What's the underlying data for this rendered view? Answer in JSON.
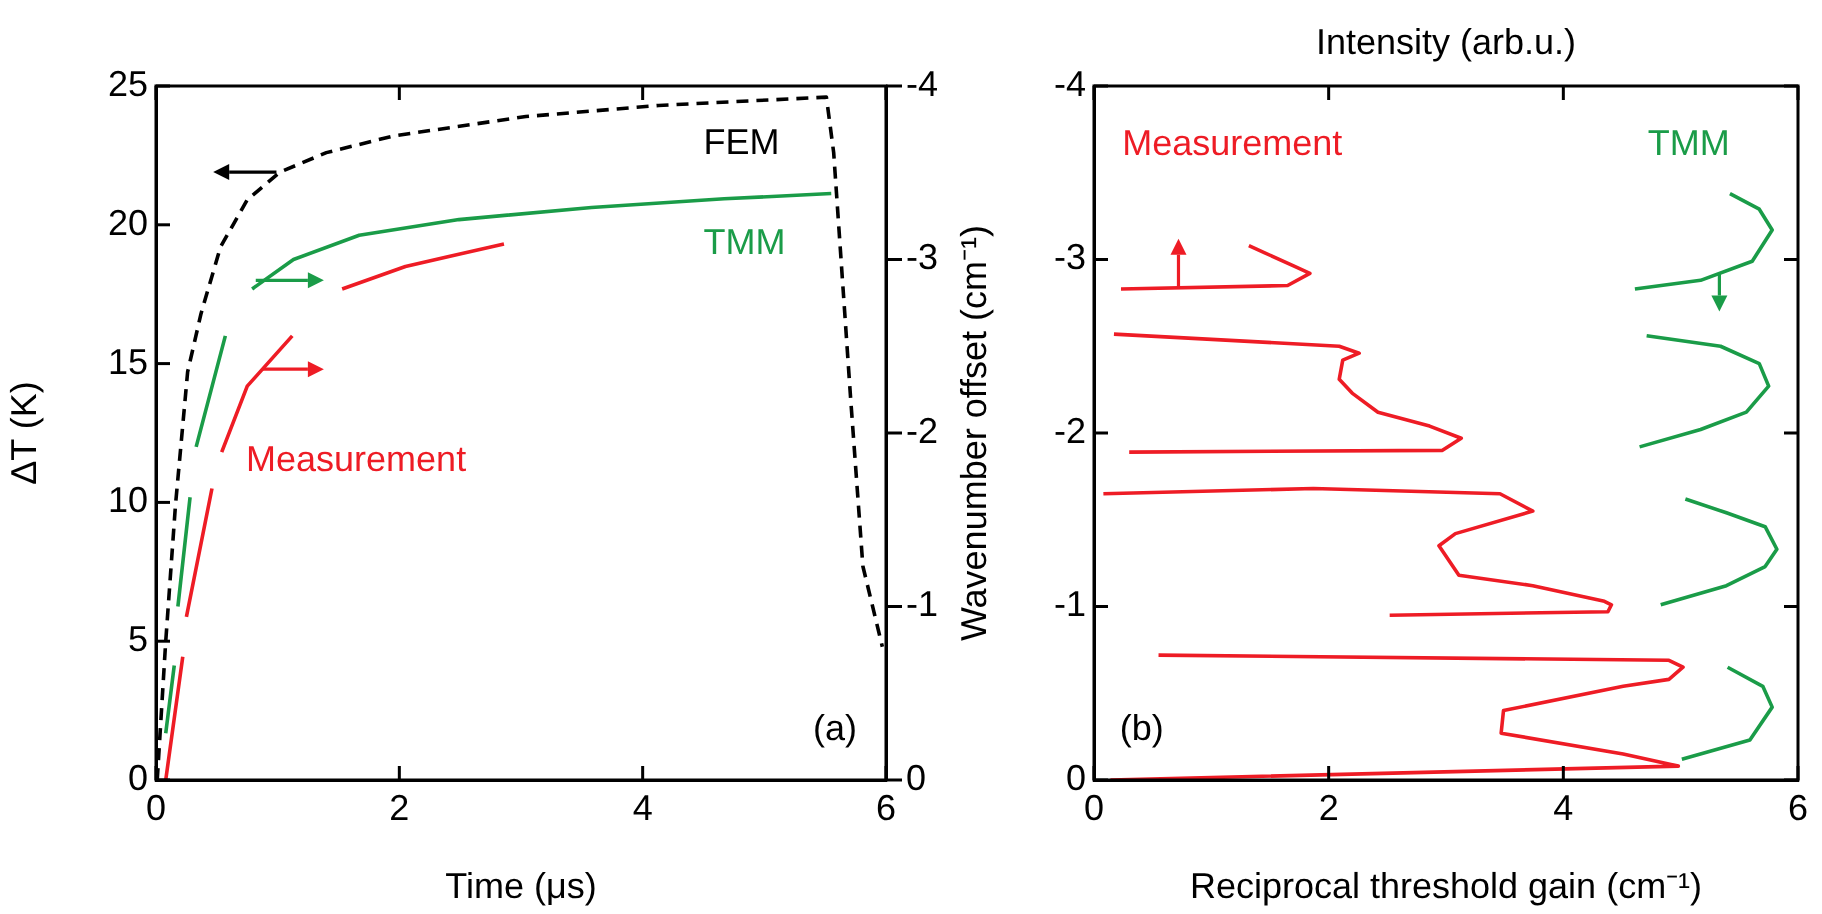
{
  "chart_data": [
    {
      "type": "line",
      "xlabel": "Time (μs)",
      "ylabel": "ΔT (K)",
      "xlim": [
        0,
        6
      ],
      "xticks": [
        0,
        2,
        4,
        6
      ],
      "ylim": [
        0,
        25
      ],
      "yticks": [
        0,
        5,
        10,
        15,
        20,
        25
      ],
      "y2lim": [
        0,
        -4
      ],
      "y2ticks": [
        0,
        -1,
        -2,
        -3,
        -4
      ],
      "grid": false,
      "legend": false,
      "marker": "none",
      "annotations": [
        "(a)"
      ],
      "series": [
        {
          "name": "FEM",
          "color": "#000000",
          "line_style": "dashed",
          "axis": "y",
          "x": [
            0.01,
            0.08,
            0.16,
            0.26,
            0.37,
            0.53,
            0.75,
            1.02,
            1.4,
            1.95,
            3.04,
            4.13,
            5.51,
            5.57,
            5.71,
            5.81,
            5.97
          ],
          "values": [
            0,
            5,
            9.9,
            14.7,
            16.8,
            19.2,
            20.9,
            21.9,
            22.6,
            23.2,
            23.9,
            24.3,
            24.6,
            22.6,
            13.7,
            7.7,
            4.8
          ]
        },
        {
          "name": "TMM",
          "color": "#1a9c48",
          "line_style": "solid",
          "axis": "y2",
          "x": [
            0.08,
            0.15,
            null,
            0.18,
            0.28,
            null,
            0.33,
            0.57,
            null,
            0.79,
            1.13,
            1.67,
            2.49,
            3.58,
            4.67,
            5.55
          ],
          "values": [
            -0.27,
            -0.66,
            null,
            -1.0,
            -1.63,
            null,
            -1.92,
            -2.56,
            null,
            -2.83,
            -3.0,
            -3.14,
            -3.23,
            -3.3,
            -3.35,
            -3.38
          ]
        },
        {
          "name": "Measurement",
          "color": "#ee1c25",
          "line_style": "solid",
          "axis": "y2",
          "x": [
            0.08,
            0.22,
            null,
            0.25,
            0.46,
            null,
            0.54,
            0.75,
            1.12,
            null,
            1.53,
            2.05,
            2.86
          ],
          "values": [
            0,
            -0.71,
            null,
            -0.94,
            -1.68,
            null,
            -1.89,
            -2.27,
            -2.56,
            null,
            -2.83,
            -2.96,
            -3.09
          ]
        }
      ]
    },
    {
      "type": "line",
      "xlabel": "Reciprocal threshold gain (cm⁻¹)",
      "x2label": "Intensity (arb.u.)",
      "ylabel": "Wavenumber offset (cm⁻¹)",
      "xlim": [
        0,
        6
      ],
      "xticks": [
        0,
        2,
        4,
        6
      ],
      "ylim": [
        0,
        -4
      ],
      "yticks": [
        0,
        -1,
        -2,
        -3,
        -4
      ],
      "grid": false,
      "legend": false,
      "marker": "none",
      "annotations": [
        "(b)"
      ],
      "series": [
        {
          "name": "Measurement",
          "color": "#ee1c25",
          "line_style": "solid",
          "x": [
            0.14,
            4.98,
            4.51,
            3.47,
            3.49,
            4.51,
            4.9,
            5.02,
            4.9,
            0.55,
            null,
            2.52,
            4.38,
            4.41,
            4.35,
            3.74,
            3.11,
            2.94,
            3.08,
            3.74,
            3.46,
            1.87,
            0.08,
            null,
            0.3,
            2.97,
            3.13,
            2.86,
            2.42,
            2.2,
            2.09,
            2.12,
            2.26,
            2.09,
            0.17,
            null,
            0.23,
            1.65,
            1.84,
            1.71,
            1.32
          ],
          "values": [
            0,
            -0.08,
            -0.15,
            -0.27,
            -0.4,
            -0.54,
            -0.58,
            -0.65,
            -0.69,
            -0.72,
            null,
            -0.95,
            -0.97,
            -1.01,
            -1.03,
            -1.12,
            -1.18,
            -1.35,
            -1.42,
            -1.55,
            -1.65,
            -1.68,
            -1.65,
            null,
            -1.89,
            -1.9,
            -1.97,
            -2.04,
            -2.12,
            -2.23,
            -2.31,
            -2.42,
            -2.46,
            -2.5,
            -2.57,
            null,
            -2.83,
            -2.85,
            -2.92,
            -2.96,
            -3.08
          ]
        },
        {
          "name": "TMM",
          "color": "#1a9c48",
          "line_style": "solid",
          "x": [
            5.01,
            5.59,
            5.78,
            5.7,
            5.4,
            null,
            4.83,
            5.39,
            5.72,
            5.82,
            5.72,
            5.39,
            5.04,
            null,
            4.65,
            5.17,
            5.56,
            5.75,
            5.67,
            5.34,
            4.71,
            null,
            4.61,
            5.17,
            5.61,
            5.78,
            5.67,
            5.42
          ],
          "values": [
            -0.12,
            -0.23,
            -0.42,
            -0.54,
            -0.65,
            null,
            -1.01,
            -1.12,
            -1.23,
            -1.33,
            -1.46,
            -1.54,
            -1.62,
            null,
            -1.92,
            -2.02,
            -2.12,
            -2.27,
            -2.4,
            -2.5,
            -2.56,
            null,
            -2.83,
            -2.88,
            -2.99,
            -3.17,
            -3.29,
            -3.38
          ]
        }
      ]
    }
  ]
}
